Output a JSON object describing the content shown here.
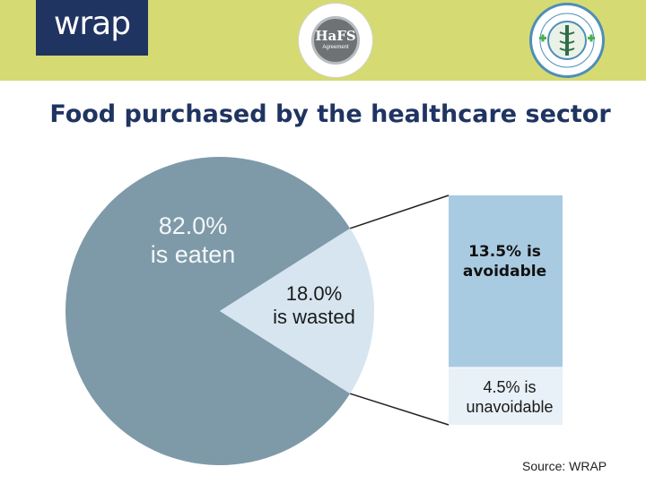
{
  "header": {
    "wrap_logo_text": "wrap",
    "hafs_logo_title": "HaFS",
    "hafs_logo_subtitle": "Agreement",
    "hca_logo_text": "HOSPITAL CATERERS ASSOCIATION · CATERING FOR HEALTH CARE"
  },
  "title": "Food purchased by the healthcare sector",
  "source": "Source: WRAP",
  "colors": {
    "header_bg": "#d6da73",
    "wrap_blue": "#1f3461",
    "eaten": "#7e9aa9",
    "wasted": "#d6e5ef",
    "avoidable": "#a9cbe1",
    "unavoidable": "#e8f1f7"
  },
  "chart_data": {
    "type": "pie",
    "title": "Food purchased by the healthcare sector",
    "series": [
      {
        "name": "is eaten",
        "value": 82.0,
        "label": [
          "82.0%",
          "is eaten"
        ]
      },
      {
        "name": "is wasted",
        "value": 18.0,
        "label": [
          "18.0%",
          "is wasted"
        ]
      }
    ],
    "breakdown": {
      "of": "is wasted",
      "type": "stacked-bar",
      "segments": [
        {
          "name": "is avoidable",
          "value": 13.5,
          "label": [
            "13.5% is",
            "avoidable"
          ]
        },
        {
          "name": "is unavoidable",
          "value": 4.5,
          "label": [
            "4.5% is",
            "unavoidable"
          ]
        }
      ]
    }
  }
}
